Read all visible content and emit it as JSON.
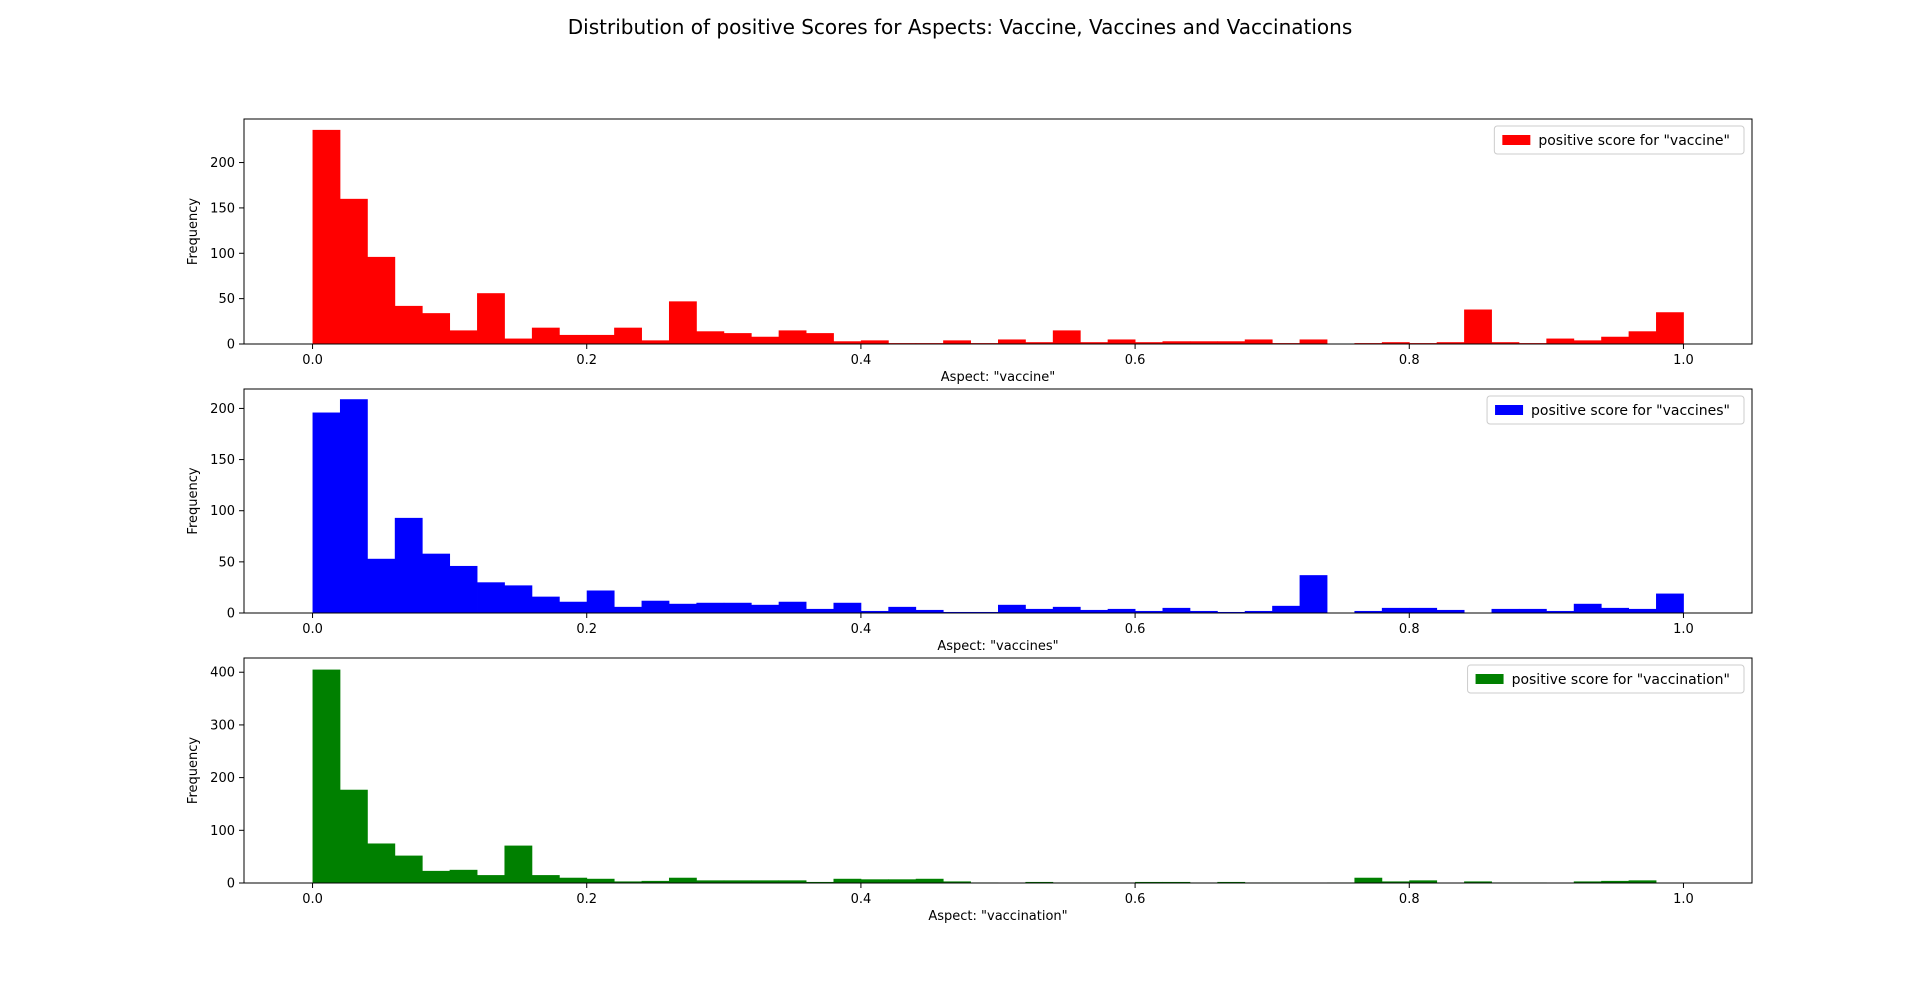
{
  "figure": {
    "title": "Distribution of positive Scores for Aspects: Vaccine, Vaccines and Vaccinations"
  },
  "chart_data": [
    {
      "type": "bar",
      "histogram": true,
      "bin_width": 0.02,
      "bin_start": 0.0,
      "color": "#ff0000",
      "series_name": "positive score for \"vaccine\"",
      "xlabel": "Aspect: \"vaccine\"",
      "ylabel": "Frequency",
      "xlim": [
        -0.05,
        1.05
      ],
      "ylim": [
        0,
        248
      ],
      "xticks": [
        0.0,
        0.2,
        0.4,
        0.6,
        0.8,
        1.0
      ],
      "xtick_labels": [
        "0.0",
        "0.2",
        "0.4",
        "0.6",
        "0.8",
        "1.0"
      ],
      "yticks": [
        0,
        50,
        100,
        150,
        200
      ],
      "ytick_labels": [
        "0",
        "50",
        "100",
        "150",
        "200"
      ],
      "legend_position": "top-right",
      "grid": false,
      "values": [
        236,
        160,
        96,
        42,
        34,
        15,
        56,
        6,
        18,
        10,
        10,
        18,
        4,
        47,
        14,
        12,
        8,
        15,
        12,
        3,
        4,
        1,
        1,
        4,
        1,
        5,
        2,
        15,
        2,
        5,
        2,
        3,
        3,
        3,
        5,
        1,
        5,
        0,
        1,
        2,
        1,
        2,
        38,
        2,
        1,
        6,
        4,
        8,
        14,
        35
      ]
    },
    {
      "type": "bar",
      "histogram": true,
      "bin_width": 0.02,
      "bin_start": 0.0,
      "color": "#0000ff",
      "series_name": "positive score for \"vaccines\"",
      "xlabel": "Aspect: \"vaccines\"",
      "ylabel": "Frequency",
      "xlim": [
        -0.05,
        1.05
      ],
      "ylim": [
        0,
        219
      ],
      "xticks": [
        0.0,
        0.2,
        0.4,
        0.6,
        0.8,
        1.0
      ],
      "xtick_labels": [
        "0.0",
        "0.2",
        "0.4",
        "0.6",
        "0.8",
        "1.0"
      ],
      "yticks": [
        0,
        50,
        100,
        150,
        200
      ],
      "ytick_labels": [
        "0",
        "50",
        "100",
        "150",
        "200"
      ],
      "legend_position": "top-right",
      "grid": false,
      "values": [
        196,
        209,
        53,
        93,
        58,
        46,
        30,
        27,
        16,
        11,
        22,
        6,
        12,
        9,
        10,
        10,
        8,
        11,
        4,
        10,
        2,
        6,
        3,
        1,
        1,
        8,
        4,
        6,
        3,
        4,
        2,
        5,
        2,
        1,
        2,
        7,
        37,
        0,
        2,
        5,
        5,
        3,
        0,
        4,
        4,
        2,
        9,
        5,
        4,
        19
      ]
    },
    {
      "type": "bar",
      "histogram": true,
      "bin_width": 0.02,
      "bin_start": 0.0,
      "color": "#008000",
      "series_name": "positive score for \"vaccination\"",
      "xlabel": "Aspect: \"vaccination\"",
      "ylabel": "Frequency",
      "xlim": [
        -0.05,
        1.05
      ],
      "ylim": [
        0,
        427
      ],
      "xticks": [
        0.0,
        0.2,
        0.4,
        0.6,
        0.8,
        1.0
      ],
      "xtick_labels": [
        "0.0",
        "0.2",
        "0.4",
        "0.6",
        "0.8",
        "1.0"
      ],
      "yticks": [
        0,
        100,
        200,
        300,
        400
      ],
      "ytick_labels": [
        "0",
        "100",
        "200",
        "300",
        "400"
      ],
      "legend_position": "top-right",
      "grid": false,
      "values": [
        405,
        177,
        75,
        52,
        23,
        25,
        15,
        71,
        15,
        10,
        8,
        3,
        4,
        10,
        5,
        5,
        5,
        5,
        2,
        8,
        7,
        7,
        8,
        3,
        1,
        0,
        2,
        1,
        1,
        1,
        2,
        2,
        1,
        2,
        1,
        1,
        0,
        1,
        10,
        3,
        5,
        0,
        3,
        1,
        1,
        0,
        3,
        4,
        5,
        0
      ]
    }
  ]
}
